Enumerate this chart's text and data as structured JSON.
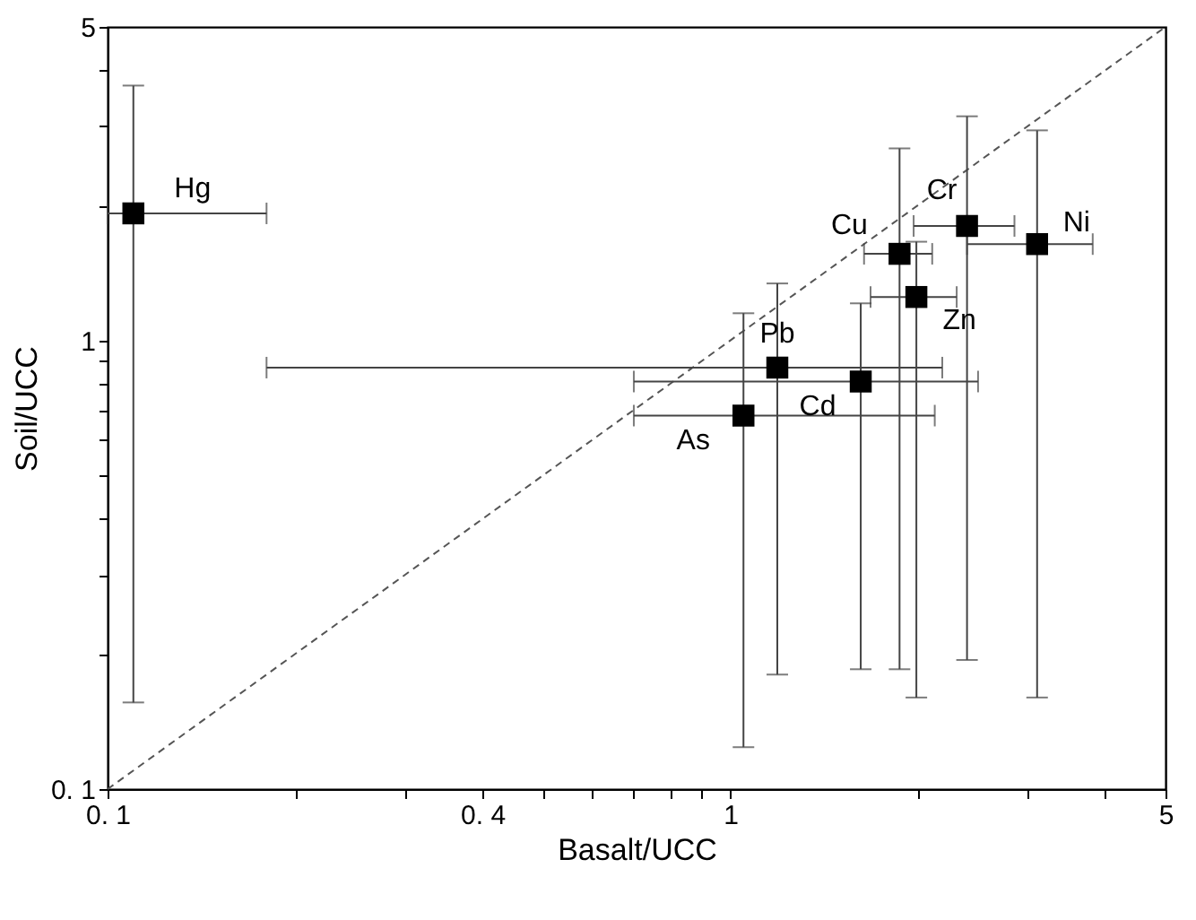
{
  "chart_data": {
    "type": "scatter",
    "xlabel": "Basalt/UCC",
    "ylabel": "Soil/UCC",
    "log": "xy",
    "grid": false,
    "xlim": [
      0.1,
      5
    ],
    "ylim": [
      0.1,
      5
    ],
    "xticks": [
      {
        "value": 0.1,
        "label": "0. 1"
      },
      {
        "value": 0.2,
        "label": null
      },
      {
        "value": 0.3,
        "label": null
      },
      {
        "value": 0.4,
        "label": "0. 4"
      },
      {
        "value": 0.5,
        "label": null
      },
      {
        "value": 0.6,
        "label": null
      },
      {
        "value": 0.7,
        "label": null
      },
      {
        "value": 0.8,
        "label": null
      },
      {
        "value": 0.9,
        "label": null
      },
      1,
      {
        "value": 2,
        "label": null
      },
      {
        "value": 3,
        "label": null
      },
      {
        "value": 4,
        "label": null
      },
      5
    ],
    "yticks": [
      {
        "value": 0.1,
        "label": "0. 1"
      },
      {
        "value": 0.2,
        "label": null
      },
      {
        "value": 0.3,
        "label": null
      },
      {
        "value": 0.4,
        "label": null
      },
      {
        "value": 0.5,
        "label": null
      },
      {
        "value": 0.6,
        "label": null
      },
      {
        "value": 0.7,
        "label": null
      },
      {
        "value": 0.8,
        "label": null
      },
      {
        "value": 0.9,
        "label": null
      },
      1,
      {
        "value": 2,
        "label": null
      },
      {
        "value": 3,
        "label": null
      },
      {
        "value": 4,
        "label": null
      },
      5
    ],
    "series": [
      {
        "color": "#000000",
        "marker": "square",
        "x": [
          0.11,
          1.19,
          1.05,
          1.62,
          1.87,
          1.99,
          2.4,
          3.11
        ],
        "values": [
          1.92,
          0.87,
          0.68,
          0.81,
          1.56,
          1.25,
          1.8,
          1.64
        ],
        "errors": [
          [
            0.156,
            3.7
          ],
          [
            0.18,
            1.34
          ],
          [
            0.124,
            1.15
          ],
          [
            0.185,
            1.21
          ],
          [
            0.185,
            2.68
          ],
          [
            0.16,
            1.66
          ],
          [
            0.194,
            3.16
          ],
          [
            0.16,
            2.94
          ]
        ],
        "xerrors": [
          [
            0.1,
            0.18
          ],
          [
            0.18,
            2.19
          ],
          [
            0.7,
            2.13
          ],
          [
            0.7,
            2.5
          ],
          [
            1.64,
            2.11
          ],
          [
            1.68,
            2.31
          ],
          [
            1.97,
            2.86
          ],
          [
            2.4,
            3.82
          ]
        ]
      },
      {
        "type": "line",
        "color": "#555555",
        "line_style": "dashed",
        "x": [
          0.1,
          5
        ],
        "values": [
          0.1,
          5
        ]
      }
    ],
    "annotations": [
      {
        "text": "Hg",
        "x": 0.11,
        "y": 1.92
      },
      {
        "text": "Pb",
        "x": 1.19,
        "y": 0.87
      },
      {
        "text": "As",
        "x": 1.05,
        "y": 0.68
      },
      {
        "text": "Cd",
        "x": 1.62,
        "y": 0.81
      },
      {
        "text": "Cu",
        "x": 1.87,
        "y": 1.56
      },
      {
        "text": "Zn",
        "x": 1.99,
        "y": 1.25
      },
      {
        "text": "Cr",
        "x": 2.4,
        "y": 1.8
      },
      {
        "text": "Ni",
        "x": 3.11,
        "y": 1.64
      }
    ]
  }
}
